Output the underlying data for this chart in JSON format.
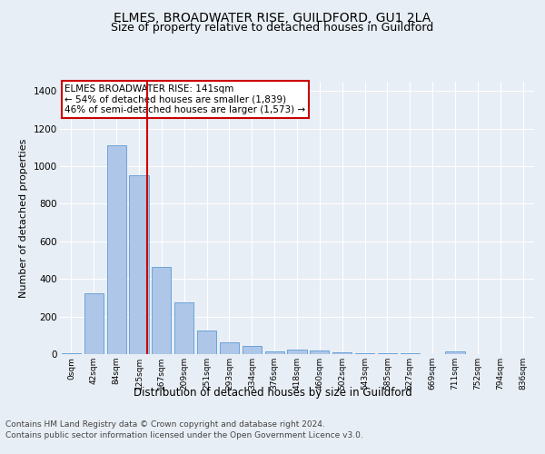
{
  "title": "ELMES, BROADWATER RISE, GUILDFORD, GU1 2LA",
  "subtitle": "Size of property relative to detached houses in Guildford",
  "xlabel": "Distribution of detached houses by size in Guildford",
  "ylabel": "Number of detached properties",
  "footnote1": "Contains HM Land Registry data © Crown copyright and database right 2024.",
  "footnote2": "Contains public sector information licensed under the Open Government Licence v3.0.",
  "bar_labels": [
    "0sqm",
    "42sqm",
    "84sqm",
    "125sqm",
    "167sqm",
    "209sqm",
    "251sqm",
    "293sqm",
    "334sqm",
    "376sqm",
    "418sqm",
    "460sqm",
    "502sqm",
    "543sqm",
    "585sqm",
    "627sqm",
    "669sqm",
    "711sqm",
    "752sqm",
    "794sqm",
    "836sqm"
  ],
  "bar_values": [
    5,
    325,
    1110,
    950,
    465,
    275,
    125,
    65,
    45,
    15,
    25,
    20,
    10,
    5,
    5,
    5,
    0,
    15,
    0,
    0,
    0
  ],
  "bar_color": "#aec6e8",
  "bar_edge_color": "#5b9bd5",
  "red_line_x": 3.38,
  "annotation_text": "ELMES BROADWATER RISE: 141sqm\n← 54% of detached houses are smaller (1,839)\n46% of semi-detached houses are larger (1,573) →",
  "annotation_box_color": "#ffffff",
  "annotation_box_edge": "#cc0000",
  "red_line_color": "#cc0000",
  "ylim": [
    0,
    1450
  ],
  "yticks": [
    0,
    200,
    400,
    600,
    800,
    1000,
    1200,
    1400
  ],
  "bg_color": "#e8eef5",
  "plot_bg_color": "#e8eef5",
  "grid_color": "#ffffff",
  "title_fontsize": 10,
  "subtitle_fontsize": 9,
  "ylabel_fontsize": 8,
  "xlabel_fontsize": 8.5,
  "xtick_fontsize": 6.5,
  "ytick_fontsize": 7.5,
  "annotation_fontsize": 7.5,
  "footnote_fontsize": 6.5
}
